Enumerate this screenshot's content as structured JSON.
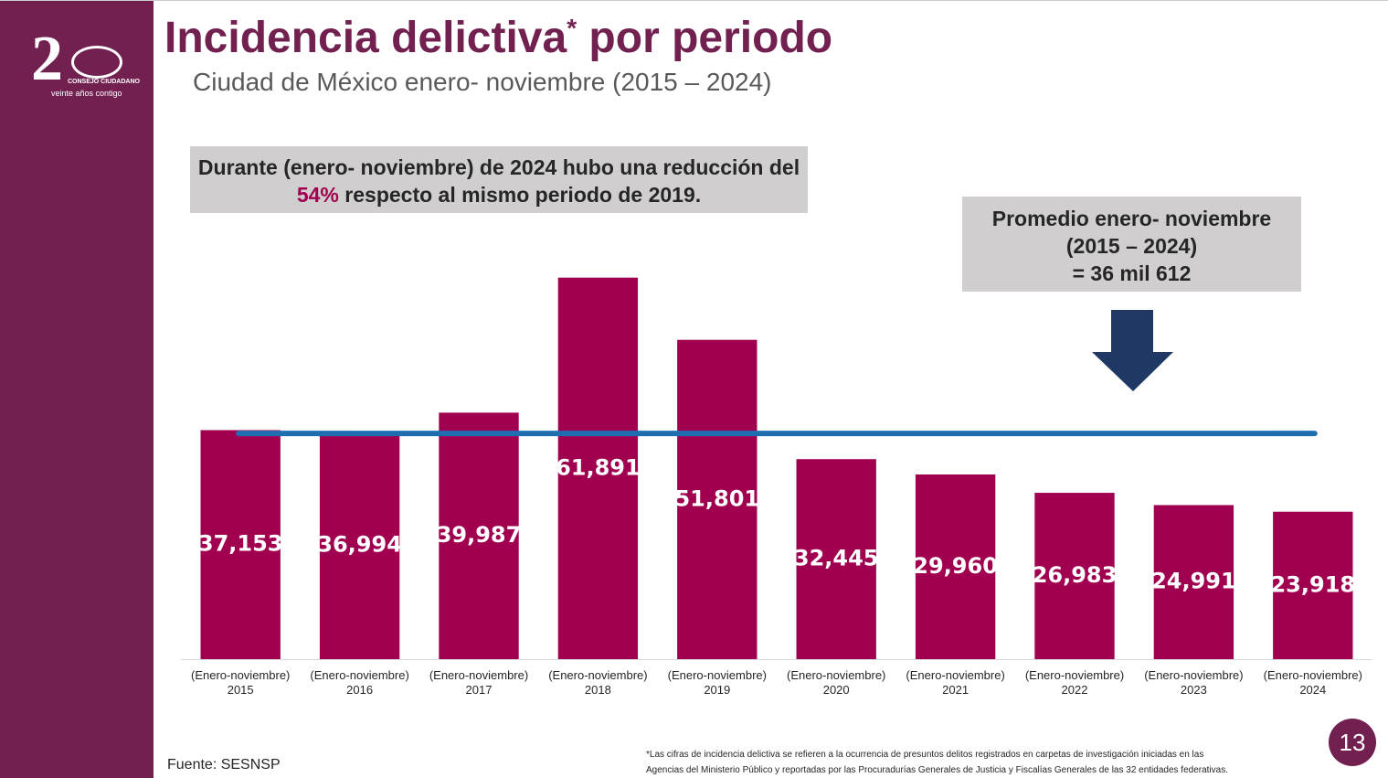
{
  "header": {
    "title": "Incidencia delictiva",
    "title_mark": "*",
    "title_end": " por periodo",
    "subtitle": "Ciudad de México enero- noviembre (2015 – 2024)",
    "logo_line_1": "CONSEJO CIUDADANO",
    "logo_line_2": "veinte años contigo"
  },
  "callout": {
    "before": "Durante (enero- noviembre) de 2024 hubo una reducción del ",
    "highlight": "54%",
    "after": " respecto al mismo periodo de 2019."
  },
  "average_box": {
    "lines": [
      "Promedio enero- noviembre",
      "(2015 – 2024)",
      "= 36 mil 612"
    ]
  },
  "chart_data": {
    "type": "bar",
    "categories": [
      "(Enero-noviembre) 2015",
      "(Enero-noviembre) 2016",
      "(Enero-noviembre) 2017",
      "(Enero-noviembre) 2018",
      "(Enero-noviembre) 2019",
      "(Enero-noviembre) 2020",
      "(Enero-noviembre) 2021",
      "(Enero-noviembre) 2022",
      "(Enero-noviembre) 2023",
      "(Enero-noviembre) 2024"
    ],
    "values": [
      37153,
      36994,
      39987,
      61891,
      51801,
      32445,
      29960,
      26983,
      24991,
      23918
    ],
    "value_labels": [
      "37,153",
      "36,994",
      "39,987",
      "61,891",
      "51,801",
      "32,445",
      "29,960",
      "26,983",
      "24,991",
      "23,918"
    ],
    "color": "#a0004f",
    "ylim": [
      0,
      70000
    ],
    "average": {
      "value": 36612,
      "color": "#1f6fb0"
    }
  },
  "footer": {
    "source": "Fuente: SESNSP",
    "note_1": "*Las cifras de incidencia delictiva se refieren a la ocurrencia de presuntos delitos registrados en carpetas de investigación iniciadas en las",
    "note_2": "Agencias del Ministerio Público y reportadas por las Procuradurías Generales de Justicia y Fiscalías Generales de las 32 entidades federativas.",
    "page": "13"
  }
}
